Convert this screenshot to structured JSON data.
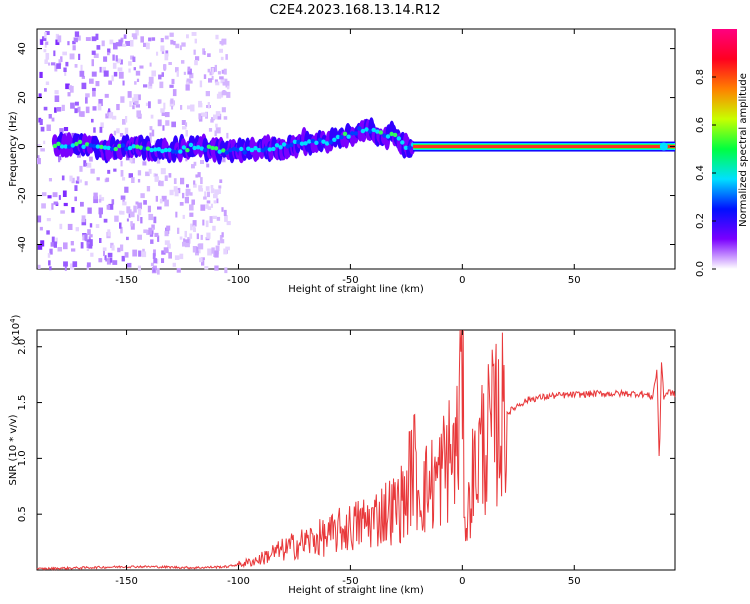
{
  "title": "C2E4.2023.168.13.14.R12",
  "colorbar": {
    "label": "Normalized spectral amplitude",
    "ticks": [
      "0.0",
      "0.2",
      "0.4",
      "0.6",
      "0.8"
    ],
    "tick_values": [
      0.0,
      0.2,
      0.4,
      0.6,
      0.8
    ],
    "colors": [
      "#ffffff",
      "#7a00ff",
      "#0010ff",
      "#00e0ff",
      "#00ff40",
      "#c8ff00",
      "#ff8000",
      "#ff0020",
      "#ff0080"
    ]
  },
  "chart_data": [
    {
      "type": "heatmap",
      "xlabel": "Height of straight line (km)",
      "ylabel": "Frequency (Hz)",
      "xlim": [
        -190,
        95
      ],
      "ylim": [
        -50,
        48
      ],
      "xticks": [
        -150,
        -100,
        -50,
        0,
        50
      ],
      "yticks": [
        40,
        20,
        0,
        -20,
        -40
      ],
      "xtick_labels": [
        "-150",
        "-100",
        "-50",
        "0",
        "50"
      ],
      "ytick_labels": [
        "40",
        "20",
        "0",
        "-20",
        "-40"
      ],
      "ridge": {
        "x": [
          -185,
          -170,
          -160,
          -150,
          -140,
          -130,
          -120,
          -110,
          -100,
          -90,
          -80,
          -70,
          -60,
          -50,
          -45,
          -40,
          -35,
          -30,
          -25,
          -20,
          -15,
          -10,
          -5,
          0,
          10,
          30,
          50,
          70,
          88,
          95
        ],
        "y": [
          0,
          1,
          -1,
          0,
          -1,
          -2,
          0,
          -1,
          -2,
          -1,
          0,
          2,
          2,
          5,
          7,
          6,
          5,
          4,
          0,
          0,
          1,
          0,
          -2,
          0,
          0,
          0,
          0,
          0,
          0,
          0
        ]
      },
      "noise_region": [
        -190,
        -105
      ]
    },
    {
      "type": "line",
      "xlabel": "Height of straight line (km)",
      "ylabel": "SNR (10 * v/v)",
      "y_multiplier": "(x10",
      "y_multiplier_exp": "4",
      "y_multiplier_close": ")",
      "xlim": [
        -190,
        95
      ],
      "ylim": [
        0,
        2.15
      ],
      "xticks": [
        -150,
        -100,
        -50,
        0,
        50
      ],
      "yticks": [
        0.5,
        1.0,
        1.5,
        2.0
      ],
      "xtick_labels": [
        "-150",
        "-100",
        "-50",
        "0",
        "50"
      ],
      "ytick_labels": [
        "0.5",
        "1.0",
        "1.5",
        "2.0"
      ],
      "series_color": "#e8383a",
      "x": [
        -190,
        -170,
        -150,
        -140,
        -120,
        -105,
        -100,
        -95,
        -90,
        -85,
        -80,
        -75,
        -70,
        -65,
        -60,
        -55,
        -50,
        -45,
        -40,
        -35,
        -30,
        -25,
        -22,
        -20,
        -18,
        -15,
        -12,
        -10,
        -8,
        -6,
        -4,
        -2,
        -1,
        0,
        1,
        2,
        4,
        6,
        8,
        10,
        12,
        15,
        20,
        25,
        30,
        40,
        50,
        60,
        70,
        80,
        85,
        87,
        88,
        89,
        90,
        92,
        95
      ],
      "y": [
        0.01,
        0.02,
        0.03,
        0.03,
        0.02,
        0.03,
        0.05,
        0.07,
        0.1,
        0.15,
        0.18,
        0.22,
        0.25,
        0.28,
        0.3,
        0.35,
        0.38,
        0.42,
        0.45,
        0.52,
        0.55,
        0.65,
        1.0,
        0.75,
        0.7,
        0.75,
        0.8,
        0.85,
        0.95,
        1.0,
        1.05,
        1.1,
        1.7,
        2.15,
        0.6,
        0.35,
        0.8,
        0.9,
        1.1,
        1.15,
        1.2,
        1.3,
        1.4,
        1.48,
        1.53,
        1.56,
        1.57,
        1.58,
        1.58,
        1.58,
        1.55,
        1.8,
        0.95,
        1.9,
        1.55,
        1.6,
        1.57
      ]
    }
  ]
}
